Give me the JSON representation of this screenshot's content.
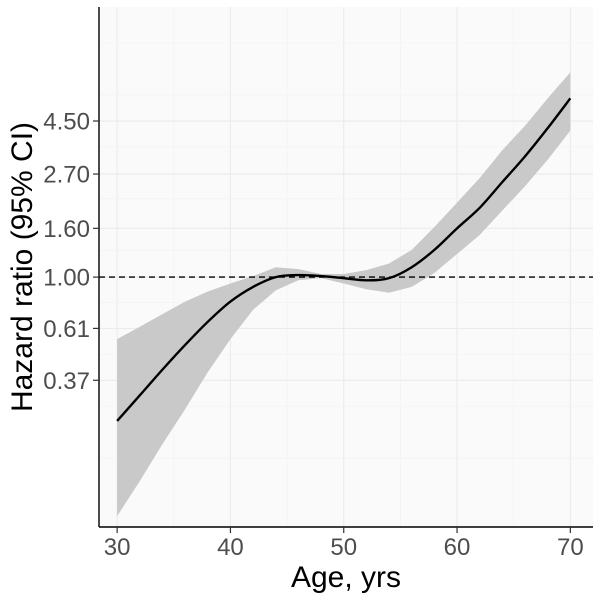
{
  "chart_data": {
    "type": "line",
    "title": "",
    "xlabel": "Age, yrs",
    "ylabel": "Hazard ratio (95% CI)",
    "x_ticks": [
      30,
      40,
      50,
      60,
      70
    ],
    "y_ticks": [
      0.37,
      0.61,
      1.0,
      1.6,
      2.7,
      4.5
    ],
    "y_tick_labels": [
      "0.37",
      "0.61",
      "1.00",
      "1.60",
      "2.70",
      "4.50"
    ],
    "y_scale": "log",
    "xlim": [
      28.4,
      72.0
    ],
    "ylim": [
      0.09,
      13.5
    ],
    "reference_line": {
      "y": 1.0,
      "style": "dashed"
    },
    "series": [
      {
        "name": "Hazard ratio",
        "x": [
          30,
          32,
          34,
          36,
          38,
          40,
          42,
          44,
          46,
          48,
          50,
          52,
          54,
          56,
          58,
          60,
          62,
          64,
          66,
          68,
          70
        ],
        "values": [
          0.25,
          0.32,
          0.41,
          0.52,
          0.65,
          0.79,
          0.91,
          1.0,
          1.02,
          1.01,
          0.99,
          0.97,
          0.99,
          1.1,
          1.3,
          1.6,
          1.95,
          2.5,
          3.2,
          4.2,
          5.6
        ]
      }
    ],
    "ci_band": {
      "name": "95% CI",
      "x": [
        30,
        32,
        34,
        36,
        38,
        40,
        42,
        44,
        46,
        48,
        50,
        52,
        54,
        56,
        58,
        60,
        62,
        64,
        66,
        68,
        70
      ],
      "lower": [
        0.1,
        0.14,
        0.2,
        0.28,
        0.4,
        0.55,
        0.73,
        0.88,
        0.97,
        0.99,
        0.94,
        0.89,
        0.86,
        0.91,
        1.04,
        1.25,
        1.5,
        1.9,
        2.4,
        3.1,
        4.1
      ],
      "upper": [
        0.55,
        0.62,
        0.7,
        0.79,
        0.87,
        0.94,
        1.01,
        1.1,
        1.08,
        1.03,
        1.03,
        1.07,
        1.14,
        1.3,
        1.62,
        2.05,
        2.6,
        3.4,
        4.3,
        5.6,
        7.2
      ]
    },
    "colors": {
      "line": "#000000",
      "band": "#c9c9c9",
      "panel": "#fafafa",
      "grid": "#ebebeb"
    },
    "grid": true,
    "legend": "none"
  }
}
